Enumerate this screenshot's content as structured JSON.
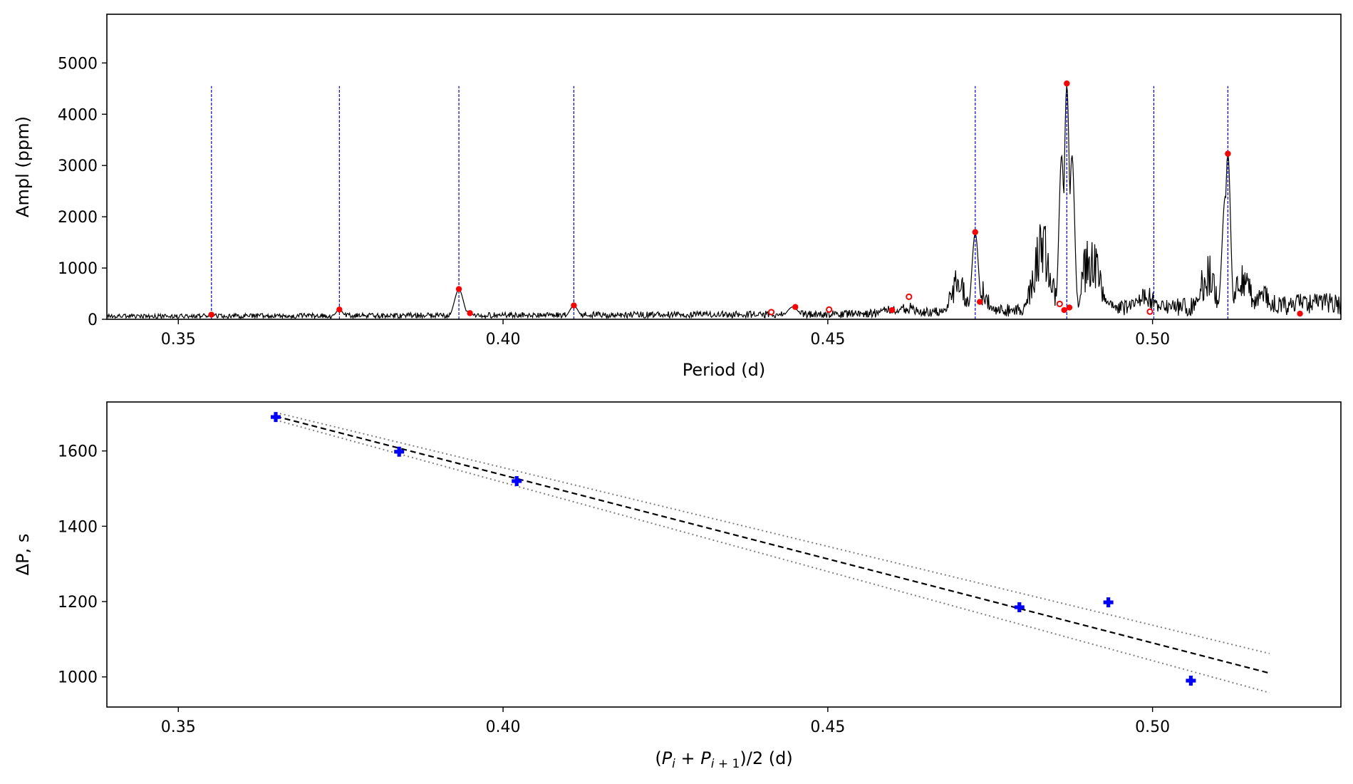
{
  "chart_data": [
    {
      "type": "line",
      "xlabel": "Period (d)",
      "ylabel": "Ampl (ppm)",
      "xlim": [
        0.339,
        0.529
      ],
      "ylim": [
        0,
        5950
      ],
      "x_ticks": [
        0.35,
        0.4,
        0.45,
        0.5
      ],
      "x_tick_labels": [
        "0.35",
        "0.40",
        "0.45",
        "0.50"
      ],
      "y_ticks": [
        0,
        1000,
        2000,
        3000,
        4000,
        5000
      ],
      "y_tick_labels": [
        "0",
        "1000",
        "2000",
        "3000",
        "4000",
        "5000"
      ],
      "grid": false,
      "colors": {
        "spectrum": "#000000",
        "peaks": "#ff0000",
        "markers": "#0000ff"
      },
      "vertical_markers": [
        0.3551,
        0.3748,
        0.3932,
        0.4109,
        0.4727,
        0.4868,
        0.5002,
        0.5116
      ],
      "vertical_marker_top": 4550,
      "spectrum_peaks": [
        {
          "x": 0.3551,
          "y": 90,
          "w": 0.0005
        },
        {
          "x": 0.3748,
          "y": 190,
          "w": 0.0006
        },
        {
          "x": 0.3932,
          "y": 580,
          "w": 0.0007
        },
        {
          "x": 0.3945,
          "y": 160,
          "w": 0.0008
        },
        {
          "x": 0.4109,
          "y": 260,
          "w": 0.0007
        },
        {
          "x": 0.4446,
          "y": 240,
          "w": 0.0009
        },
        {
          "x": 0.4595,
          "y": 280,
          "w": 0.0012
        },
        {
          "x": 0.4625,
          "y": 320,
          "w": 0.0015
        },
        {
          "x": 0.47,
          "y": 900,
          "w": 0.0012
        },
        {
          "x": 0.4727,
          "y": 1680,
          "w": 0.0005
        },
        {
          "x": 0.474,
          "y": 700,
          "w": 0.001
        },
        {
          "x": 0.483,
          "y": 1800,
          "w": 0.0014
        },
        {
          "x": 0.486,
          "y": 3200,
          "w": 0.0004
        },
        {
          "x": 0.4868,
          "y": 4560,
          "w": 0.0004
        },
        {
          "x": 0.4876,
          "y": 3200,
          "w": 0.0004
        },
        {
          "x": 0.4905,
          "y": 1700,
          "w": 0.0014
        },
        {
          "x": 0.499,
          "y": 650,
          "w": 0.0015
        },
        {
          "x": 0.5085,
          "y": 1200,
          "w": 0.0012
        },
        {
          "x": 0.5112,
          "y": 2400,
          "w": 0.0005
        },
        {
          "x": 0.5116,
          "y": 3250,
          "w": 0.0004
        },
        {
          "x": 0.514,
          "y": 1100,
          "w": 0.0012
        },
        {
          "x": 0.517,
          "y": 700,
          "w": 0.0012
        },
        {
          "x": 0.526,
          "y": 430,
          "w": 0.001
        }
      ],
      "peak_points": [
        {
          "x": 0.3551,
          "y": 90,
          "filled": true
        },
        {
          "x": 0.3748,
          "y": 190,
          "filled": true
        },
        {
          "x": 0.3932,
          "y": 590,
          "filled": true
        },
        {
          "x": 0.3949,
          "y": 120,
          "filled": true
        },
        {
          "x": 0.4109,
          "y": 270,
          "filled": true
        },
        {
          "x": 0.4413,
          "y": 140,
          "filled": false
        },
        {
          "x": 0.445,
          "y": 240,
          "filled": true
        },
        {
          "x": 0.4502,
          "y": 190,
          "filled": false
        },
        {
          "x": 0.4599,
          "y": 180,
          "filled": true
        },
        {
          "x": 0.4625,
          "y": 440,
          "filled": false
        },
        {
          "x": 0.4727,
          "y": 1700,
          "filled": true
        },
        {
          "x": 0.4734,
          "y": 340,
          "filled": true
        },
        {
          "x": 0.4857,
          "y": 300,
          "filled": false
        },
        {
          "x": 0.4864,
          "y": 180,
          "filled": true
        },
        {
          "x": 0.4868,
          "y": 4600,
          "filled": true
        },
        {
          "x": 0.4872,
          "y": 230,
          "filled": true
        },
        {
          "x": 0.4996,
          "y": 150,
          "filled": false
        },
        {
          "x": 0.5116,
          "y": 3230,
          "filled": true
        },
        {
          "x": 0.5227,
          "y": 110,
          "filled": true
        }
      ]
    },
    {
      "type": "scatter",
      "xlabel": "(P_i + P_i+1)/2 (d)",
      "ylabel": "ΔP, s",
      "xlim": [
        0.339,
        0.529
      ],
      "ylim": [
        920,
        1730
      ],
      "x_ticks": [
        0.35,
        0.4,
        0.45,
        0.5
      ],
      "x_tick_labels": [
        "0.35",
        "0.40",
        "0.45",
        "0.50"
      ],
      "y_ticks": [
        1000,
        1200,
        1400,
        1600
      ],
      "y_tick_labels": [
        "1000",
        "1200",
        "1400",
        "1600"
      ],
      "grid": false,
      "colors": {
        "points": "#0000ff",
        "fit": "#000000",
        "bounds": "#808080"
      },
      "points": [
        {
          "x": 0.365,
          "y": 1690
        },
        {
          "x": 0.384,
          "y": 1598
        },
        {
          "x": 0.4021,
          "y": 1520
        },
        {
          "x": 0.4795,
          "y": 1185
        },
        {
          "x": 0.4932,
          "y": 1198
        },
        {
          "x": 0.5059,
          "y": 990
        }
      ],
      "fit_line": {
        "x": [
          0.365,
          0.518
        ],
        "y": [
          1692,
          1010
        ]
      },
      "upper_bound": {
        "x": [
          0.365,
          0.518
        ],
        "y": [
          1702,
          1062
        ]
      },
      "lower_bound": {
        "x": [
          0.365,
          0.518
        ],
        "y": [
          1682,
          958
        ]
      }
    }
  ]
}
